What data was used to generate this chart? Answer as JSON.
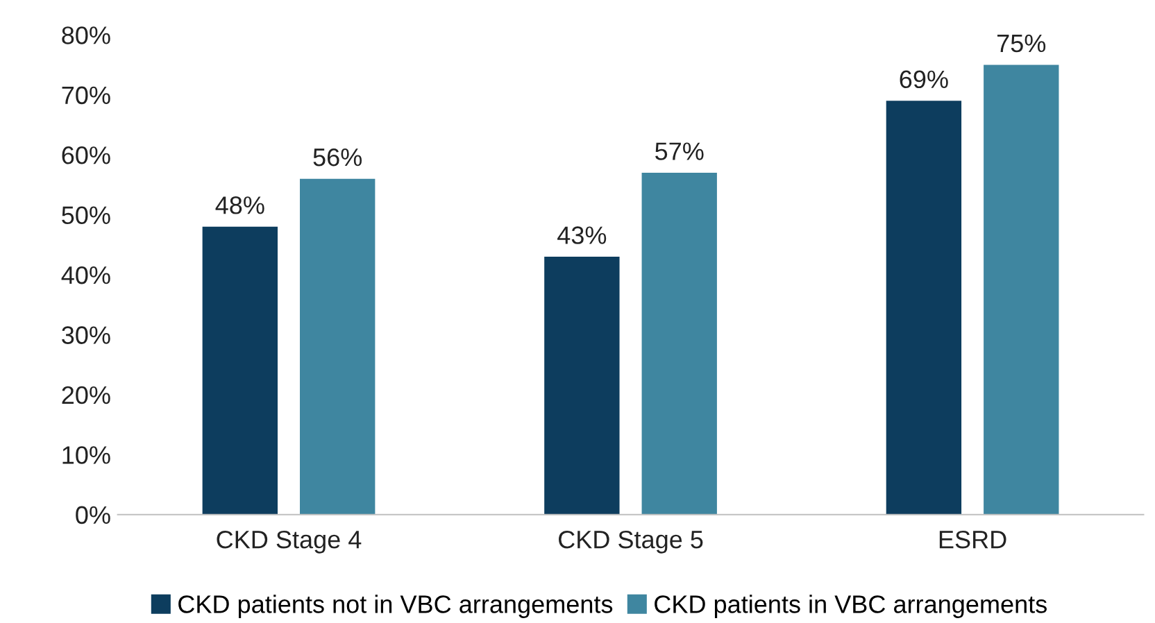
{
  "chart_data": {
    "type": "bar",
    "categories": [
      "CKD Stage 4",
      "CKD Stage 5",
      "ESRD"
    ],
    "series": [
      {
        "name": "CKD patients not in VBC arrangements",
        "color": "#0d3d5e",
        "values": [
          48,
          43,
          69
        ],
        "value_labels": [
          "48%",
          "43%",
          "69%"
        ]
      },
      {
        "name": "CKD patients in VBC arrangements",
        "color": "#3f86a0",
        "values": [
          56,
          57,
          75
        ],
        "value_labels": [
          "56%",
          "57%",
          "75%"
        ]
      }
    ],
    "ylim": [
      0,
      80
    ],
    "yticks": [
      {
        "value": 0,
        "label": "0%"
      },
      {
        "value": 10,
        "label": "10%"
      },
      {
        "value": 20,
        "label": "20%"
      },
      {
        "value": 30,
        "label": "30%"
      },
      {
        "value": 40,
        "label": "40%"
      },
      {
        "value": 50,
        "label": "50%"
      },
      {
        "value": 60,
        "label": "60%"
      },
      {
        "value": 70,
        "label": "70%"
      },
      {
        "value": 80,
        "label": "80%"
      }
    ],
    "grid": false,
    "legend": "bottom"
  }
}
